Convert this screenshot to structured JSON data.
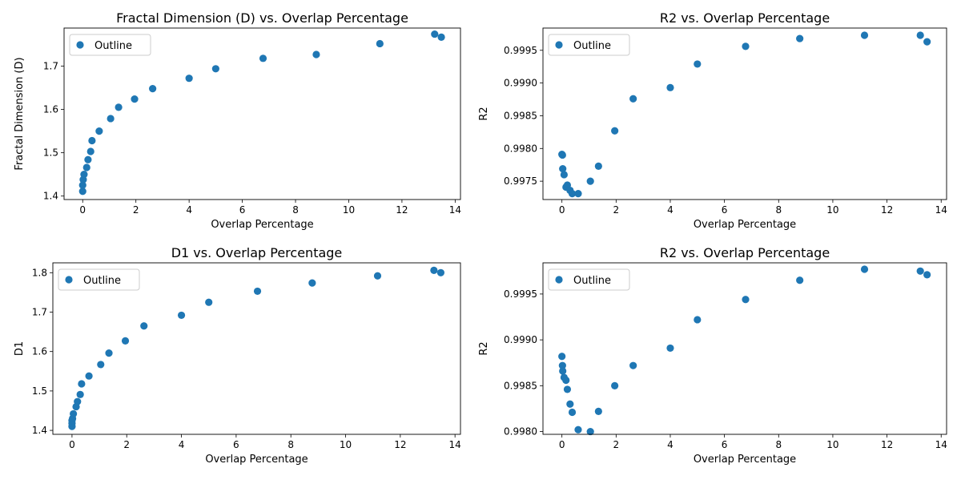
{
  "chart_data": [
    {
      "type": "scatter",
      "title": "Fractal Dimension (D) vs. Overlap Percentage",
      "xlabel": "Overlap Percentage",
      "ylabel": "Fractal Dimension (D)",
      "xlim": [
        -0.7,
        14.2
      ],
      "ylim": [
        1.392,
        1.788
      ],
      "xticks": [
        0,
        2,
        4,
        6,
        8,
        10,
        12,
        14
      ],
      "xtick_labels": [
        "0",
        "2",
        "4",
        "6",
        "8",
        "10",
        "12",
        "14"
      ],
      "yticks": [
        1.4,
        1.5,
        1.6,
        1.7
      ],
      "ytick_labels": [
        "1.4",
        "1.5",
        "1.6",
        "1.7"
      ],
      "legend": "upper-left",
      "color": "#1f77b4",
      "series": [
        {
          "name": "Outline",
          "x": [
            0.0,
            0.0,
            0.02,
            0.05,
            0.15,
            0.2,
            0.3,
            0.35,
            0.62,
            1.05,
            1.35,
            1.95,
            2.63,
            4.0,
            5.0,
            6.78,
            8.78,
            11.17,
            13.23,
            13.48
          ],
          "y": [
            1.411,
            1.425,
            1.438,
            1.45,
            1.466,
            1.484,
            1.503,
            1.528,
            1.55,
            1.579,
            1.605,
            1.624,
            1.648,
            1.672,
            1.694,
            1.718,
            1.727,
            1.752,
            1.774,
            1.767
          ]
        }
      ]
    },
    {
      "type": "scatter",
      "title": "R2 vs. Overlap Percentage",
      "xlabel": "Overlap Percentage",
      "ylabel": "R2",
      "xlim": [
        -0.7,
        14.2
      ],
      "ylim": [
        0.99722,
        0.99984
      ],
      "xticks": [
        0,
        2,
        4,
        6,
        8,
        10,
        12,
        14
      ],
      "xtick_labels": [
        "0",
        "2",
        "4",
        "6",
        "8",
        "10",
        "12",
        "14"
      ],
      "yticks": [
        0.9975,
        0.998,
        0.9985,
        0.999,
        0.9995
      ],
      "ytick_labels": [
        "0.9975",
        "0.9980",
        "0.9985",
        "0.9990",
        "0.9995"
      ],
      "legend": "upper-left",
      "color": "#1f77b4",
      "series": [
        {
          "name": "Outline",
          "x": [
            0.0,
            0.02,
            0.03,
            0.08,
            0.15,
            0.2,
            0.3,
            0.38,
            0.6,
            1.05,
            1.35,
            1.95,
            2.63,
            4.0,
            5.0,
            6.78,
            8.78,
            11.17,
            13.23,
            13.48
          ],
          "y": [
            0.99791,
            0.9979,
            0.99769,
            0.9976,
            0.99741,
            0.99744,
            0.99736,
            0.99731,
            0.99731,
            0.9975,
            0.99773,
            0.99827,
            0.99876,
            0.99893,
            0.99929,
            0.99956,
            0.99968,
            0.99973,
            0.99973,
            0.99963
          ]
        }
      ]
    },
    {
      "type": "scatter",
      "title": "D1 vs. Overlap Percentage",
      "xlabel": "Overlap Percentage",
      "ylabel": "D1",
      "xlim": [
        -0.7,
        14.2
      ],
      "ylim": [
        1.39,
        1.825
      ],
      "xticks": [
        0,
        2,
        4,
        6,
        8,
        10,
        12,
        14
      ],
      "xtick_labels": [
        "0",
        "2",
        "4",
        "6",
        "8",
        "10",
        "12",
        "14"
      ],
      "yticks": [
        1.4,
        1.5,
        1.6,
        1.7,
        1.8
      ],
      "ytick_labels": [
        "1.4",
        "1.5",
        "1.6",
        "1.7",
        "1.8"
      ],
      "legend": "upper-left",
      "color": "#1f77b4",
      "series": [
        {
          "name": "Outline",
          "x": [
            0.0,
            0.0,
            0.0,
            0.02,
            0.05,
            0.15,
            0.2,
            0.3,
            0.35,
            0.62,
            1.05,
            1.35,
            1.95,
            2.63,
            4.0,
            5.0,
            6.78,
            8.78,
            11.17,
            13.23,
            13.48
          ],
          "y": [
            1.41,
            1.418,
            1.425,
            1.43,
            1.442,
            1.46,
            1.473,
            1.491,
            1.518,
            1.538,
            1.567,
            1.596,
            1.627,
            1.665,
            1.692,
            1.725,
            1.753,
            1.774,
            1.792,
            1.806,
            1.8
          ]
        }
      ]
    },
    {
      "type": "scatter",
      "title": "R2 vs. Overlap Percentage",
      "xlabel": "Overlap Percentage",
      "ylabel": "R2",
      "xlim": [
        -0.7,
        14.2
      ],
      "ylim": [
        0.99797,
        0.99984
      ],
      "xticks": [
        0,
        2,
        4,
        6,
        8,
        10,
        12,
        14
      ],
      "xtick_labels": [
        "0",
        "2",
        "4",
        "6",
        "8",
        "10",
        "12",
        "14"
      ],
      "yticks": [
        0.998,
        0.9985,
        0.999,
        0.9995
      ],
      "ytick_labels": [
        "0.9980",
        "0.9985",
        "0.9990",
        "0.9995"
      ],
      "legend": "upper-left",
      "color": "#1f77b4",
      "series": [
        {
          "name": "Outline",
          "x": [
            0.0,
            0.02,
            0.03,
            0.08,
            0.15,
            0.2,
            0.3,
            0.38,
            0.6,
            1.05,
            1.35,
            1.95,
            2.63,
            4.0,
            5.0,
            6.78,
            8.78,
            11.17,
            13.23,
            13.48
          ],
          "y": [
            0.99882,
            0.99872,
            0.99866,
            0.99859,
            0.99856,
            0.99846,
            0.9983,
            0.99821,
            0.99802,
            0.998,
            0.99822,
            0.9985,
            0.99872,
            0.99891,
            0.99922,
            0.99944,
            0.99965,
            0.99977,
            0.99975,
            0.99971
          ]
        }
      ]
    }
  ]
}
